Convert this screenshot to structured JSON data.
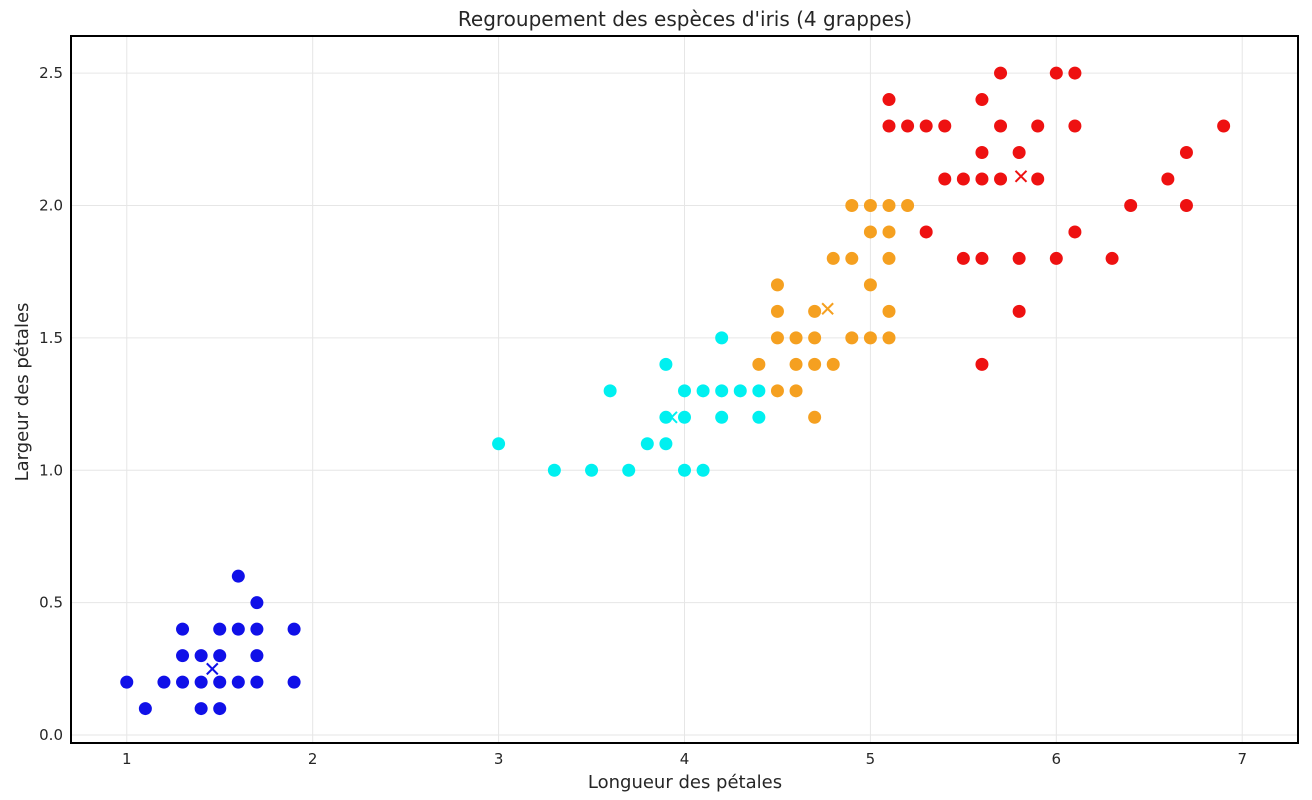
{
  "chart_data": {
    "type": "scatter",
    "title": "Regroupement des espèces d'iris (4 grappes)",
    "xlabel": "Longueur des pétales",
    "ylabel": "Largeur des pétales",
    "xlim": [
      0.7,
      7.3
    ],
    "ylim": [
      -0.03,
      2.64
    ],
    "x_ticks": [
      1,
      2,
      3,
      4,
      5,
      6,
      7
    ],
    "x_tick_labels": [
      "1",
      "2",
      "3",
      "4",
      "5",
      "6",
      "7"
    ],
    "y_ticks": [
      0.0,
      0.5,
      1.0,
      1.5,
      2.0,
      2.5
    ],
    "y_tick_labels": [
      "0.0",
      "0.5",
      "1.0",
      "1.5",
      "2.0",
      "2.5"
    ],
    "grid": true,
    "legend": "none",
    "clusters": [
      {
        "color": "#1010e8",
        "centroid": [
          1.46,
          0.25
        ],
        "points": [
          [
            1.0,
            0.2
          ],
          [
            1.1,
            0.1
          ],
          [
            1.2,
            0.2
          ],
          [
            1.3,
            0.2
          ],
          [
            1.3,
            0.3
          ],
          [
            1.3,
            0.4
          ],
          [
            1.4,
            0.1
          ],
          [
            1.4,
            0.2
          ],
          [
            1.4,
            0.3
          ],
          [
            1.5,
            0.1
          ],
          [
            1.5,
            0.2
          ],
          [
            1.5,
            0.3
          ],
          [
            1.5,
            0.4
          ],
          [
            1.6,
            0.2
          ],
          [
            1.6,
            0.4
          ],
          [
            1.6,
            0.6
          ],
          [
            1.7,
            0.2
          ],
          [
            1.7,
            0.3
          ],
          [
            1.7,
            0.4
          ],
          [
            1.7,
            0.5
          ],
          [
            1.9,
            0.2
          ],
          [
            1.9,
            0.4
          ]
        ]
      },
      {
        "color": "#00f0f0",
        "centroid": [
          3.93,
          1.2
        ],
        "points": [
          [
            3.0,
            1.1
          ],
          [
            3.3,
            1.0
          ],
          [
            3.5,
            1.0
          ],
          [
            3.6,
            1.3
          ],
          [
            3.7,
            1.0
          ],
          [
            3.8,
            1.1
          ],
          [
            3.9,
            1.1
          ],
          [
            3.9,
            1.2
          ],
          [
            3.9,
            1.4
          ],
          [
            4.0,
            1.0
          ],
          [
            4.0,
            1.2
          ],
          [
            4.0,
            1.3
          ],
          [
            4.1,
            1.0
          ],
          [
            4.1,
            1.3
          ],
          [
            4.2,
            1.2
          ],
          [
            4.2,
            1.3
          ],
          [
            4.2,
            1.5
          ],
          [
            4.3,
            1.3
          ],
          [
            4.4,
            1.2
          ],
          [
            4.4,
            1.3
          ]
        ]
      },
      {
        "color": "#f5a020",
        "centroid": [
          4.77,
          1.61
        ],
        "points": [
          [
            4.4,
            1.4
          ],
          [
            4.5,
            1.3
          ],
          [
            4.5,
            1.5
          ],
          [
            4.5,
            1.6
          ],
          [
            4.5,
            1.7
          ],
          [
            4.6,
            1.3
          ],
          [
            4.6,
            1.4
          ],
          [
            4.6,
            1.5
          ],
          [
            4.7,
            1.2
          ],
          [
            4.7,
            1.4
          ],
          [
            4.7,
            1.5
          ],
          [
            4.7,
            1.6
          ],
          [
            4.8,
            1.4
          ],
          [
            4.8,
            1.8
          ],
          [
            4.9,
            1.5
          ],
          [
            4.9,
            1.8
          ],
          [
            4.9,
            2.0
          ],
          [
            5.0,
            1.5
          ],
          [
            5.0,
            1.7
          ],
          [
            5.0,
            1.9
          ],
          [
            5.0,
            2.0
          ],
          [
            5.1,
            1.5
          ],
          [
            5.1,
            1.6
          ],
          [
            5.1,
            1.8
          ],
          [
            5.1,
            1.9
          ],
          [
            5.1,
            2.0
          ],
          [
            5.2,
            2.0
          ]
        ]
      },
      {
        "color": "#ee1111",
        "centroid": [
          5.81,
          2.11
        ],
        "points": [
          [
            5.1,
            2.3
          ],
          [
            5.1,
            2.4
          ],
          [
            5.2,
            2.3
          ],
          [
            5.3,
            1.9
          ],
          [
            5.3,
            2.3
          ],
          [
            5.4,
            2.1
          ],
          [
            5.4,
            2.3
          ],
          [
            5.5,
            1.8
          ],
          [
            5.5,
            2.1
          ],
          [
            5.6,
            1.4
          ],
          [
            5.6,
            1.8
          ],
          [
            5.6,
            2.1
          ],
          [
            5.6,
            2.2
          ],
          [
            5.6,
            2.4
          ],
          [
            5.7,
            2.1
          ],
          [
            5.7,
            2.3
          ],
          [
            5.7,
            2.5
          ],
          [
            5.8,
            1.6
          ],
          [
            5.8,
            1.8
          ],
          [
            5.8,
            2.2
          ],
          [
            5.9,
            2.1
          ],
          [
            5.9,
            2.3
          ],
          [
            6.0,
            1.8
          ],
          [
            6.0,
            2.5
          ],
          [
            6.1,
            1.9
          ],
          [
            6.1,
            2.3
          ],
          [
            6.1,
            2.5
          ],
          [
            6.3,
            1.8
          ],
          [
            6.4,
            2.0
          ],
          [
            6.6,
            2.1
          ],
          [
            6.7,
            2.0
          ],
          [
            6.7,
            2.2
          ],
          [
            6.9,
            2.3
          ]
        ]
      }
    ]
  }
}
